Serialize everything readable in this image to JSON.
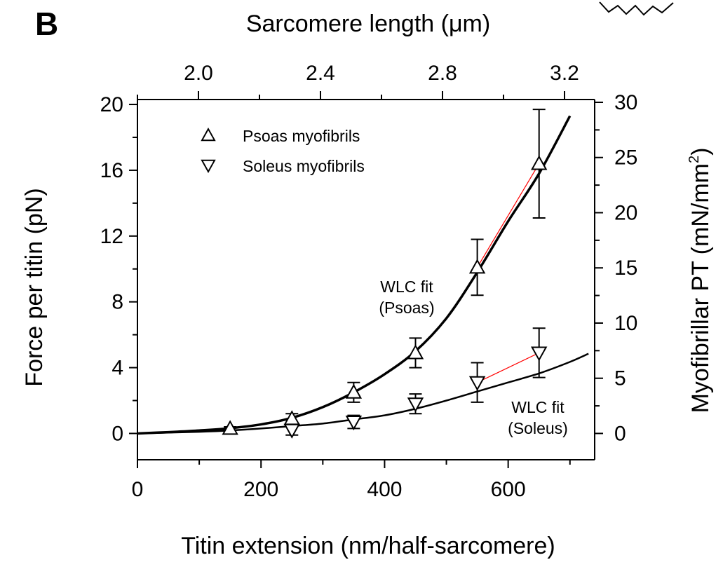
{
  "chart_data": {
    "type": "scatter",
    "panel_label": "B",
    "xlabel": "Titin extension (nm/half-sarcomere)",
    "ylabel": "Force per titin (pN)",
    "top_xlabel": "Sarcomere length (μm)",
    "right_ylabel_main": "Myofibrillar PT (mN/mm",
    "right_ylabel_sup": "2",
    "right_ylabel_close": ")",
    "xlim": [
      0,
      740
    ],
    "ylim": [
      -1.6,
      20.3
    ],
    "x_ticks": [
      0,
      200,
      400,
      600
    ],
    "x_tick_labels": [
      "0",
      "200",
      "400",
      "600"
    ],
    "y_ticks": [
      0,
      4,
      8,
      12,
      16,
      20
    ],
    "y_tick_labels": [
      "0",
      "4",
      "8",
      "12",
      "16",
      "20"
    ],
    "top_ticks": [
      2.0,
      2.4,
      2.8,
      3.2
    ],
    "top_tick_labels": [
      "2.0",
      "2.4",
      "2.8",
      "3.2"
    ],
    "right_ticks": [
      0,
      5,
      10,
      15,
      20,
      25,
      30
    ],
    "right_tick_labels": [
      "0",
      "5",
      "10",
      "15",
      "20",
      "25",
      "30"
    ],
    "series": [
      {
        "name": "Psoas myofibrils",
        "marker": "triangle-up",
        "x": [
          150,
          250,
          350,
          450,
          550,
          650
        ],
        "y": [
          0.3,
          0.9,
          2.5,
          4.9,
          10.1,
          16.4
        ],
        "err": [
          0.1,
          0.3,
          0.6,
          0.9,
          1.7,
          3.3
        ]
      },
      {
        "name": "Soleus myofibrils",
        "marker": "triangle-down",
        "x": [
          250,
          350,
          450,
          550,
          650
        ],
        "y": [
          0.2,
          0.7,
          1.8,
          3.1,
          4.9
        ],
        "err": [
          0.3,
          0.4,
          0.6,
          1.2,
          1.5
        ]
      }
    ],
    "fits": [
      {
        "label_line1": "WLC fit",
        "label_line2": "(Psoas)",
        "x": [
          0,
          50,
          100,
          150,
          200,
          250,
          300,
          350,
          400,
          450,
          500,
          550,
          600,
          650,
          700
        ],
        "y": [
          0,
          0.08,
          0.18,
          0.32,
          0.55,
          0.95,
          1.6,
          2.5,
          3.6,
          5.0,
          7.0,
          9.8,
          12.9,
          15.8,
          19.3
        ]
      },
      {
        "label_line1": "WLC fit",
        "label_line2": "(Soleus)",
        "x": [
          0,
          50,
          100,
          150,
          200,
          250,
          300,
          350,
          400,
          450,
          500,
          550,
          600,
          650,
          700,
          730
        ],
        "y": [
          0,
          0.05,
          0.1,
          0.18,
          0.3,
          0.45,
          0.6,
          0.85,
          1.1,
          1.5,
          2.0,
          2.55,
          3.1,
          3.65,
          4.35,
          4.85
        ]
      }
    ],
    "connectors": [
      {
        "x1": 550,
        "y1": 10.1,
        "x2": 650,
        "y2": 16.4,
        "color": "#ff0000"
      },
      {
        "x1": 550,
        "y1": 3.1,
        "x2": 650,
        "y2": 4.9,
        "color": "#ff0000"
      }
    ]
  }
}
